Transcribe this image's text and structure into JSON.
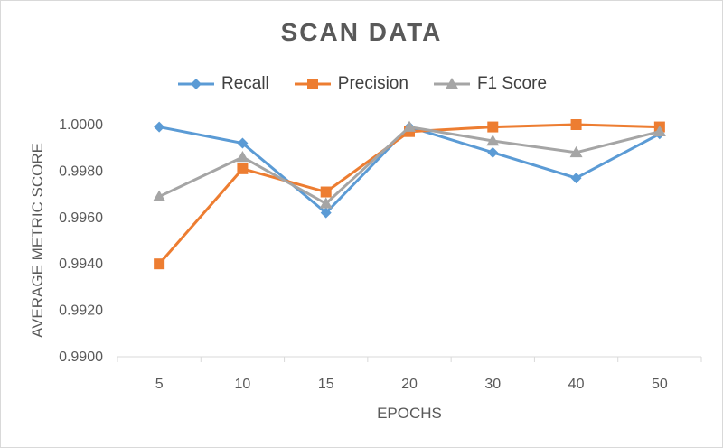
{
  "chart_data": {
    "type": "line",
    "title": "SCAN DATA",
    "xlabel": "EPOCHS",
    "ylabel": "AVERAGE METRIC SCORE",
    "categories": [
      "5",
      "10",
      "15",
      "20",
      "30",
      "40",
      "50"
    ],
    "ylim": [
      0.99,
      1.0
    ],
    "yticks": [
      "0.9900",
      "0.9920",
      "0.9940",
      "0.9960",
      "0.9980",
      "1.0000"
    ],
    "grid": false,
    "legend": "top",
    "series": [
      {
        "name": "Recall",
        "color": "#5b9bd5",
        "marker": "diamond",
        "values": [
          0.9999,
          0.9992,
          0.9962,
          0.9999,
          0.9988,
          0.9977,
          0.9996
        ]
      },
      {
        "name": "Precision",
        "color": "#ed7d31",
        "marker": "square",
        "values": [
          0.994,
          0.9981,
          0.9971,
          0.9997,
          0.9999,
          1.0,
          0.9999
        ]
      },
      {
        "name": "F1 Score",
        "color": "#a5a5a5",
        "marker": "triangle",
        "values": [
          0.9969,
          0.9986,
          0.9966,
          0.9999,
          0.9993,
          0.9988,
          0.9997
        ]
      }
    ]
  }
}
